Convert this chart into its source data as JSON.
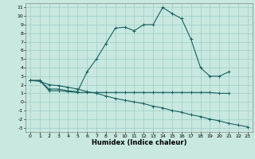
{
  "title": "",
  "xlabel": "Humidex (Indice chaleur)",
  "bg_color": "#c8e8e0",
  "grid_color": "#9ecec8",
  "line_color": "#1a6060",
  "xlim": [
    -0.5,
    23.5
  ],
  "ylim": [
    -3.5,
    11.5
  ],
  "x_ticks": [
    0,
    1,
    2,
    3,
    4,
    5,
    6,
    7,
    8,
    9,
    10,
    11,
    12,
    13,
    14,
    15,
    16,
    17,
    18,
    19,
    20,
    21,
    22,
    23
  ],
  "y_ticks": [
    -3,
    -2,
    -1,
    0,
    1,
    2,
    3,
    4,
    5,
    6,
    7,
    8,
    9,
    10,
    11
  ],
  "curve1_x": [
    0,
    1,
    2,
    3,
    4,
    5,
    6,
    7,
    8,
    9,
    10,
    11,
    12,
    13,
    14,
    15,
    16,
    17,
    18,
    19,
    20,
    21
  ],
  "curve1_y": [
    2.5,
    2.5,
    1.5,
    1.5,
    1.3,
    1.2,
    3.5,
    5.0,
    6.8,
    8.6,
    8.7,
    8.3,
    9.0,
    9.0,
    11.0,
    10.3,
    9.7,
    7.3,
    4.0,
    3.0,
    3.0,
    3.5
  ],
  "curve2_x": [
    0,
    1,
    2,
    3,
    4,
    5,
    6,
    7,
    8,
    9,
    10,
    11,
    12,
    13,
    14,
    15,
    16,
    17,
    18,
    19,
    20,
    21
  ],
  "curve2_y": [
    2.5,
    2.5,
    1.3,
    1.3,
    1.2,
    1.1,
    1.1,
    1.1,
    1.1,
    1.1,
    1.1,
    1.1,
    1.1,
    1.1,
    1.1,
    1.1,
    1.1,
    1.1,
    1.1,
    1.1,
    1.0,
    1.0
  ],
  "curve3_x": [
    0,
    1,
    2,
    3,
    4,
    5,
    6,
    7,
    8,
    9,
    10,
    11,
    12,
    13,
    14,
    15,
    16,
    17,
    18,
    19,
    20,
    21,
    22,
    23
  ],
  "curve3_y": [
    2.5,
    2.4,
    2.0,
    1.9,
    1.7,
    1.5,
    1.2,
    1.0,
    0.7,
    0.4,
    0.2,
    0.0,
    -0.2,
    -0.5,
    -0.7,
    -1.0,
    -1.2,
    -1.5,
    -1.7,
    -2.0,
    -2.2,
    -2.5,
    -2.7,
    -2.9
  ],
  "xlabel_fontsize": 6,
  "tick_fontsize": 4.5
}
